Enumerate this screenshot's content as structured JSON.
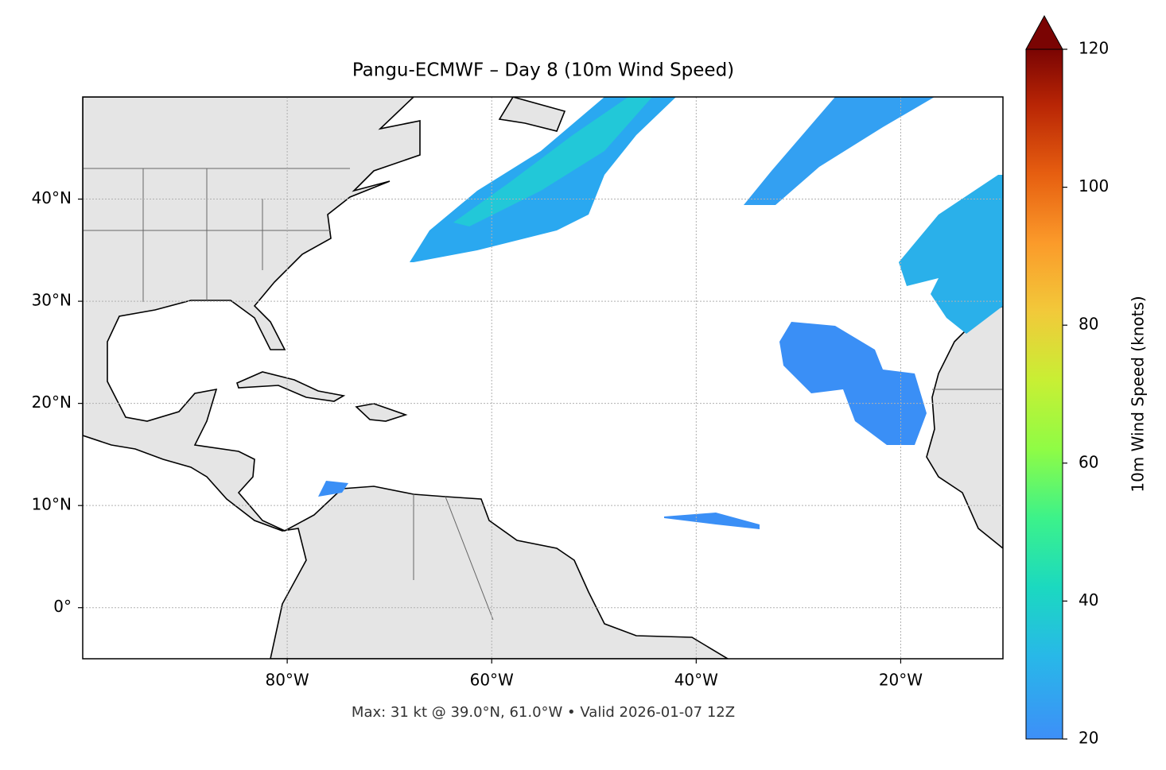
{
  "chart_data": {
    "type": "map",
    "title": "Pangu-ECMWF – Day 8 (10m Wind Speed)",
    "annotation": "Max: 31 kt @ 39.0°N, 61.0°W • Valid 2026-01-07 12Z",
    "xlim": [
      -100,
      -10
    ],
    "ylim": [
      -5,
      50
    ],
    "xticks": [
      {
        "value": -80,
        "label": "80°W"
      },
      {
        "value": -60,
        "label": "60°W"
      },
      {
        "value": -40,
        "label": "40°W"
      },
      {
        "value": -20,
        "label": "20°W"
      }
    ],
    "yticks": [
      {
        "value": 0,
        "label": "0°"
      },
      {
        "value": 10,
        "label": "10°N"
      },
      {
        "value": 20,
        "label": "20°N"
      },
      {
        "value": 30,
        "label": "30°N"
      },
      {
        "value": 40,
        "label": "40°N"
      }
    ],
    "grid": true,
    "colorbar": {
      "label": "10m Wind Speed (knots)",
      "lim": [
        20,
        120
      ],
      "ticks": [
        20,
        40,
        60,
        80,
        100,
        120
      ]
    }
  }
}
